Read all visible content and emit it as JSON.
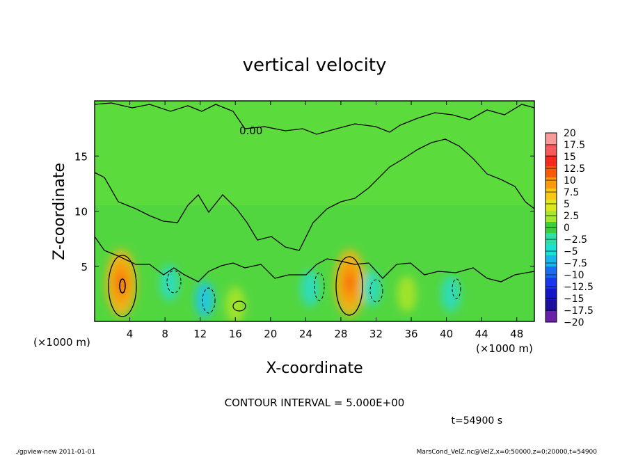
{
  "chart_data": {
    "type": "heatmap",
    "title": "vertical velocity",
    "xlabel": "X-coordinate",
    "ylabel": "Z-coordinate",
    "x_unit": "(×1000 m)",
    "y_unit": "(×1000 m)",
    "xlim": [
      0,
      50
    ],
    "ylim": [
      0,
      20
    ],
    "x_ticks": [
      "4",
      "8",
      "12",
      "16",
      "20",
      "24",
      "28",
      "32",
      "36",
      "40",
      "44",
      "48"
    ],
    "y_ticks": [
      "5",
      "10",
      "15"
    ],
    "contour_interval_label": "CONTOUR INTERVAL = 5.000E+00",
    "contour_label": "0.00",
    "time_label": "t=54900 s",
    "colorbar": {
      "labels": [
        "20",
        "17.5",
        "15",
        "12.5",
        "10",
        "7.5",
        "5",
        "2.5",
        "0",
        "−2.5",
        "−5",
        "−7.5",
        "−10",
        "−12.5",
        "−15",
        "−17.5",
        "−20"
      ],
      "colors": [
        "#f79a9a",
        "#f75a5a",
        "#f42a1c",
        "#f95a0a",
        "#fb9a0c",
        "#f9c814",
        "#dde81c",
        "#a8e82a",
        "#3ccf3c",
        "#2ee0a8",
        "#1ce0d4",
        "#16b8ec",
        "#1a6cf4",
        "#1838f0",
        "#1414c8",
        "#1e0e9c",
        "#6a20a8"
      ]
    },
    "hotspots": [
      {
        "x": 3.0,
        "z": 3.5,
        "value": 12
      },
      {
        "x": 29.0,
        "z": 3.5,
        "value": 12
      },
      {
        "x": 16.0,
        "z": 1.5,
        "value": 4
      },
      {
        "x": 35.5,
        "z": 2.5,
        "value": 4
      }
    ],
    "cold_spots": [
      {
        "x": 8.5,
        "z": 3.5,
        "value": -6
      },
      {
        "x": 12.5,
        "z": 2.0,
        "value": -8
      },
      {
        "x": 24.5,
        "z": 3.0,
        "value": -5
      },
      {
        "x": 31.5,
        "z": 3.0,
        "value": -6
      },
      {
        "x": 40.5,
        "z": 2.5,
        "value": -5
      }
    ]
  },
  "footer": {
    "left": "./gpview-new   2011-01-01",
    "right": "MarsCond_VelZ.nc@VelZ,x=0:50000,z=0:20000,t=54900"
  }
}
